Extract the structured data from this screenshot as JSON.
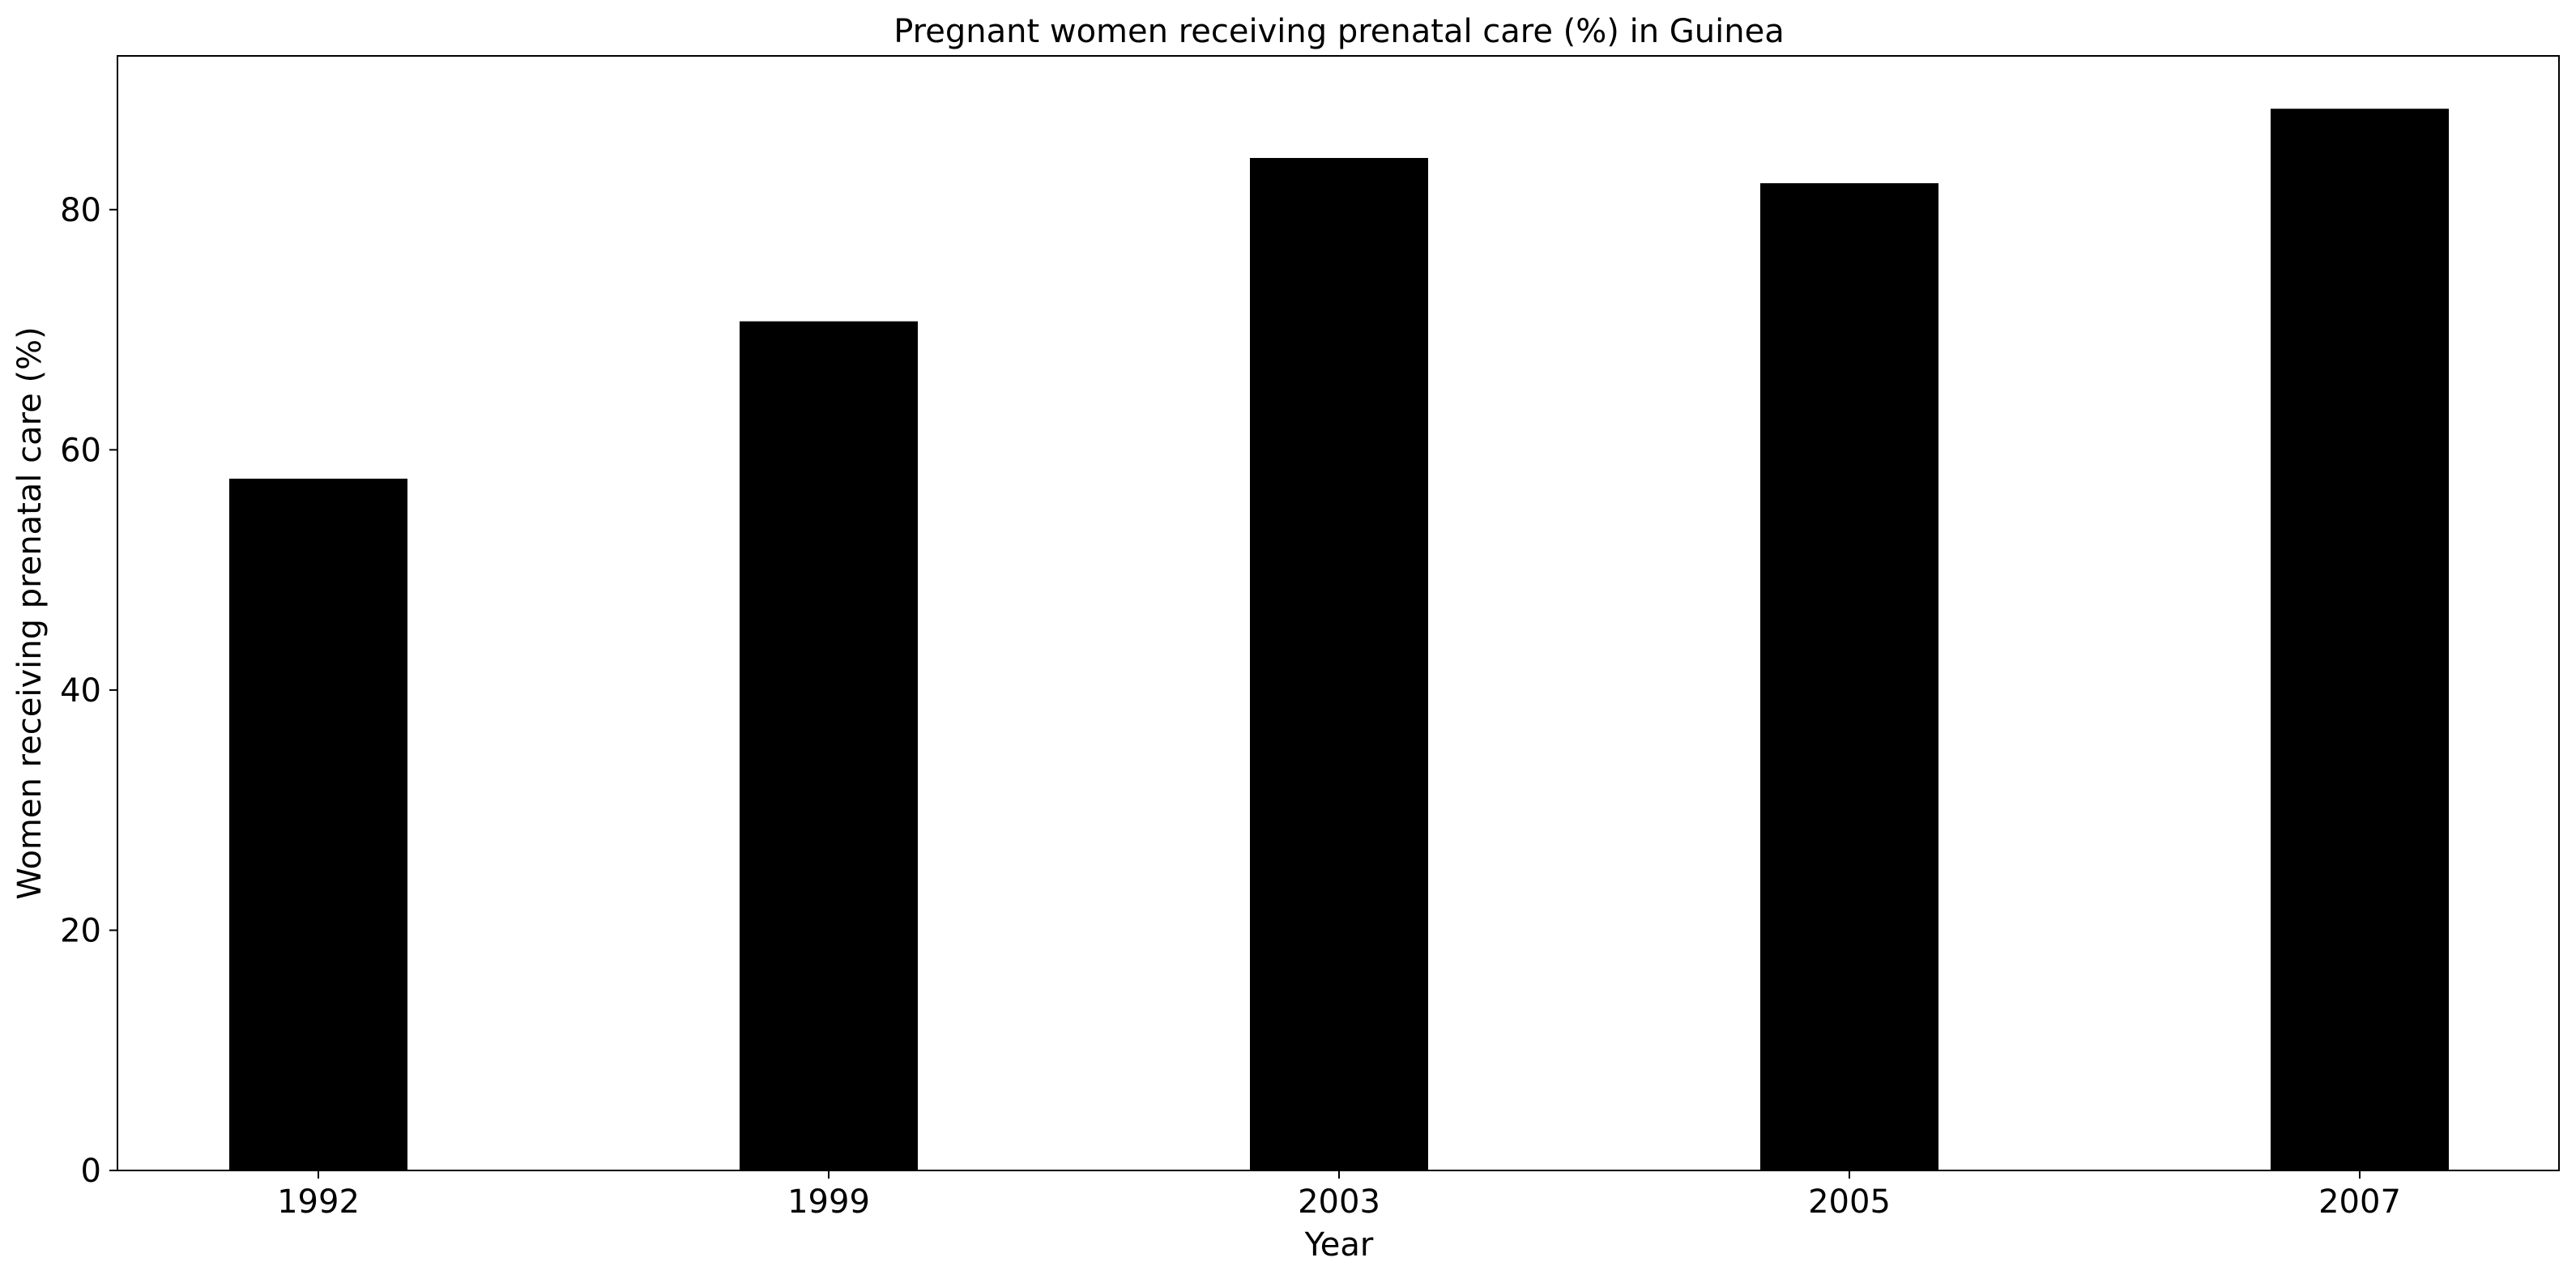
{
  "chart_data": {
    "type": "bar",
    "title": "Pregnant women receiving prenatal care (%) in Guinea",
    "xlabel": "Year",
    "ylabel": "Women receiving prenatal care (%)",
    "categories": [
      "1992",
      "1999",
      "2003",
      "2005",
      "2007"
    ],
    "values": [
      57.6,
      70.7,
      84.3,
      82.2,
      88.4
    ],
    "ylim": [
      0,
      92.8
    ],
    "yticks": [
      0,
      20,
      40,
      60,
      80
    ],
    "grid": false,
    "legend": "none",
    "bar_color": "#000000"
  }
}
